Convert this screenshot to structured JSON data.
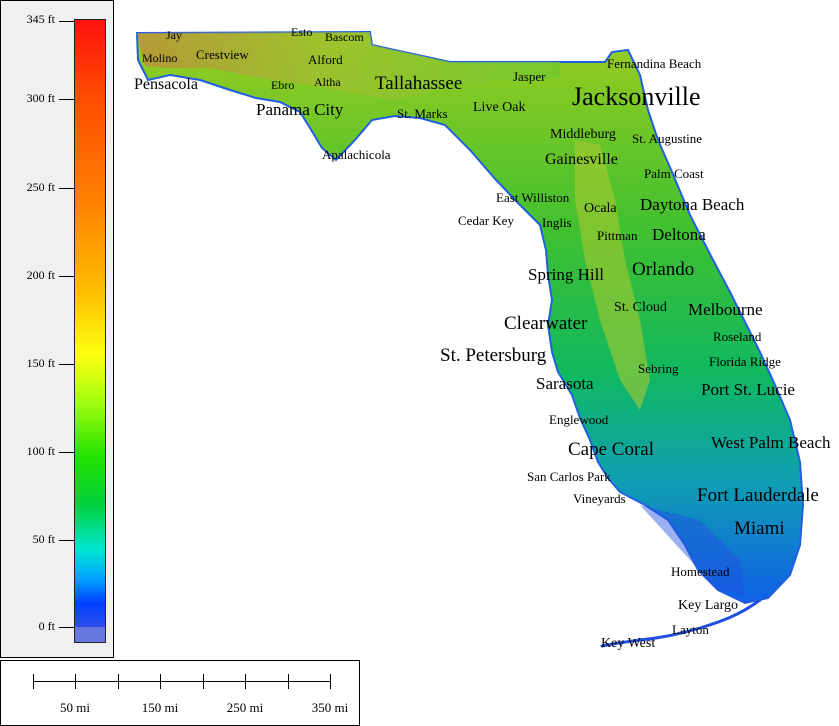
{
  "legend": {
    "ticks": [
      "345 ft",
      "300 ft",
      "250 ft",
      "200 ft",
      "150 ft",
      "100 ft",
      "50 ft",
      "0 ft"
    ],
    "colors": {
      "high": "#ff1010",
      "mid": "#ffff10",
      "low": "#00d040",
      "sea": "#0040ff"
    }
  },
  "scale_bar": {
    "labels": [
      "50 mi",
      "150 mi",
      "250 mi",
      "350 mi"
    ]
  },
  "map": {
    "state_colors": {
      "land_low": "#00c060",
      "land_mid": "#70d020",
      "highland": "#c08040",
      "coast": "#0060ff"
    },
    "cities": [
      "Jay",
      "Esto",
      "Bascom",
      "Molino",
      "Crestview",
      "Alford",
      "Pensacola",
      "Ebro",
      "Altha",
      "Tallahassee",
      "Jasper",
      "Fernandina Beach",
      "Jacksonville",
      "Panama City",
      "St. Marks",
      "Live Oak",
      "Middleburg",
      "St. Augustine",
      "Apalachicola",
      "Gainesville",
      "Palm Coast",
      "East Williston",
      "Daytona Beach",
      "Ocala",
      "Cedar Key",
      "Inglis",
      "Pittman",
      "Deltona",
      "Spring Hill",
      "Orlando",
      "St. Cloud",
      "Melbourne",
      "Clearwater",
      "Roseland",
      "St. Petersburg",
      "Florida Ridge",
      "Sebring",
      "Sarasota",
      "Port St. Lucie",
      "Englewood",
      "West Palm Beach",
      "Cape Coral",
      "San Carlos Park",
      "Vineyards",
      "Fort Lauderdale",
      "Miami",
      "Homestead",
      "Key Largo",
      "Layton",
      "Key West"
    ]
  }
}
